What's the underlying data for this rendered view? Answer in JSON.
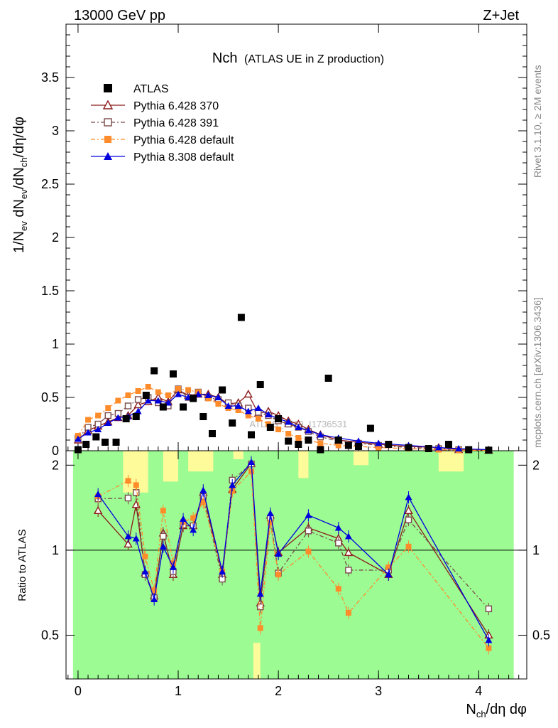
{
  "header": {
    "left": "13000 GeV pp",
    "right": "Z+Jet"
  },
  "side_labels": {
    "top": "Rivet 3.1.10, ≥ 2M events",
    "bottom": "mcplots.cern.ch [arXiv:1306.3436]"
  },
  "chart_data": {
    "type": "scatter",
    "title": "Nch",
    "subtitle": "(ATLAS UE in Z production)",
    "watermark": "ATLAS_2019_I1736531",
    "xlabel": "N_ch/dη dφ",
    "ylabel": "1/N_ev dN_ev/dN_ch/dη dφ",
    "ratio_ylabel": "Ratio to ATLAS",
    "xlim": [
      -0.12,
      4.48
    ],
    "ylim": [
      0,
      4.0
    ],
    "ratio_ylim": [
      0.35,
      2.25
    ],
    "xticks": [
      "0",
      "1",
      "2",
      "3",
      "4"
    ],
    "yticks": [
      "0",
      "0.5",
      "1",
      "1.5",
      "2",
      "2.5",
      "3",
      "3.5"
    ],
    "ratio_yticks": [
      "0.5",
      "1",
      "2"
    ],
    "legend_position": "top-left",
    "reference": {
      "name": "ATLAS",
      "color": "#000000",
      "x": [
        0.0,
        0.08,
        0.18,
        0.27,
        0.38,
        0.48,
        0.58,
        0.68,
        0.76,
        0.85,
        0.95,
        1.05,
        1.15,
        1.25,
        1.34,
        1.44,
        1.54,
        1.63,
        1.73,
        1.82,
        1.92,
        2.0,
        2.1,
        2.2,
        2.3,
        2.42,
        2.5,
        2.6,
        2.7,
        2.8,
        2.92,
        3.1,
        3.3,
        3.5,
        3.7,
        3.9,
        4.1
      ],
      "y": [
        0.01,
        0.06,
        0.13,
        0.08,
        0.08,
        0.3,
        0.32,
        0.52,
        0.75,
        0.41,
        0.72,
        0.41,
        0.49,
        0.32,
        0.16,
        0.57,
        0.26,
        1.25,
        0.15,
        0.62,
        0.22,
        0.3,
        0.09,
        0.06,
        0.1,
        0.01,
        0.68,
        0.1,
        0.05,
        0.04,
        0.21,
        0.06,
        0.03,
        0.02,
        0.06,
        0.01,
        0.005
      ]
    },
    "x": [
      0.0,
      0.1,
      0.2,
      0.3,
      0.4,
      0.5,
      0.6,
      0.7,
      0.8,
      0.9,
      1.0,
      1.1,
      1.2,
      1.3,
      1.4,
      1.5,
      1.6,
      1.7,
      1.8,
      1.9,
      2.0,
      2.1,
      2.2,
      2.3,
      2.42,
      2.6,
      2.8,
      3.0,
      3.3,
      3.6,
      3.8,
      4.1
    ],
    "series": [
      {
        "name": "Pythia 6.428 370",
        "color": "#8b1a1a",
        "marker": "triangle-open",
        "dash": "",
        "values": [
          0.1,
          0.19,
          0.23,
          0.27,
          0.31,
          0.33,
          0.43,
          0.46,
          0.5,
          0.46,
          0.57,
          0.52,
          0.53,
          0.53,
          0.5,
          0.44,
          0.45,
          0.53,
          0.35,
          0.37,
          0.33,
          0.28,
          0.25,
          0.2,
          0.15,
          0.1,
          0.08,
          0.06,
          0.04,
          0.03,
          0.01,
          0.005
        ]
      },
      {
        "name": "Pythia 6.428 391",
        "color": "#7a4a4a",
        "marker": "square-open",
        "dash": "6,3,2,3",
        "values": [
          0.12,
          0.22,
          0.25,
          0.33,
          0.35,
          0.42,
          0.48,
          0.5,
          0.45,
          0.42,
          0.58,
          0.5,
          0.55,
          0.5,
          0.48,
          0.45,
          0.42,
          0.4,
          0.36,
          0.33,
          0.28,
          0.25,
          0.22,
          0.18,
          0.13,
          0.09,
          0.07,
          0.05,
          0.03,
          0.02,
          0.01,
          0.005
        ]
      },
      {
        "name": "Pythia 6.428 default",
        "color": "#ff8c2a",
        "marker": "square-filled",
        "dash": "6,3,2,3",
        "values": [
          0.14,
          0.29,
          0.33,
          0.4,
          0.47,
          0.52,
          0.56,
          0.6,
          0.55,
          0.52,
          0.58,
          0.57,
          0.55,
          0.49,
          0.44,
          0.4,
          0.38,
          0.33,
          0.3,
          0.25,
          0.2,
          0.16,
          0.12,
          0.1,
          0.07,
          0.05,
          0.04,
          0.03,
          0.02,
          0.01,
          0.005,
          0.002
        ]
      },
      {
        "name": "Pythia 8.308 default",
        "color": "#0000dd",
        "marker": "triangle-filled",
        "dash": "",
        "values": [
          0.11,
          0.17,
          0.2,
          0.26,
          0.31,
          0.32,
          0.37,
          0.47,
          0.47,
          0.45,
          0.53,
          0.5,
          0.53,
          0.52,
          0.5,
          0.42,
          0.42,
          0.37,
          0.4,
          0.34,
          0.3,
          0.27,
          0.22,
          0.19,
          0.15,
          0.12,
          0.09,
          0.07,
          0.05,
          0.03,
          0.02,
          0.01
        ]
      }
    ],
    "ratio": {
      "x": [
        0.2,
        0.5,
        0.58,
        0.67,
        0.76,
        0.85,
        0.95,
        1.05,
        1.15,
        1.25,
        1.44,
        1.54,
        1.73,
        1.82,
        1.92,
        2.0,
        2.3,
        2.6,
        2.7,
        3.1,
        3.3,
        4.1
      ],
      "series": [
        {
          "name": "Pythia 6.428 370",
          "values": [
            1.38,
            1.05,
            1.45,
            0.83,
            0.69,
            1.15,
            0.82,
            1.22,
            1.22,
            1.6,
            0.82,
            1.64,
            2.03,
            0.65,
            1.33,
            0.98,
            1.2,
            1.1,
            0.98,
            0.82,
            1.38,
            0.5
          ]
        },
        {
          "name": "Pythia 6.428 391",
          "values": [
            1.52,
            1.53,
            1.6,
            0.82,
            0.68,
            1.12,
            0.84,
            1.23,
            1.22,
            1.55,
            0.79,
            1.77,
            2.02,
            0.63,
            1.3,
            0.83,
            1.17,
            1.06,
            0.85,
            0.85,
            1.28,
            0.62
          ]
        },
        {
          "name": "Pythia 6.428 default",
          "values": [
            1.55,
            1.76,
            1.7,
            0.95,
            0.72,
            1.38,
            0.9,
            1.26,
            1.3,
            1.48,
            0.84,
            1.62,
            1.9,
            0.53,
            1.25,
            0.82,
            0.99,
            0.73,
            0.6,
            0.87,
            1.03,
            0.45
          ]
        },
        {
          "name": "Pythia 8.308 default",
          "values": [
            1.58,
            1.12,
            1.1,
            0.84,
            0.67,
            1.03,
            0.87,
            1.29,
            1.18,
            1.63,
            0.84,
            1.7,
            2.05,
            0.7,
            1.35,
            0.97,
            1.33,
            1.2,
            1.12,
            0.82,
            1.54,
            0.48
          ]
        }
      ]
    }
  }
}
